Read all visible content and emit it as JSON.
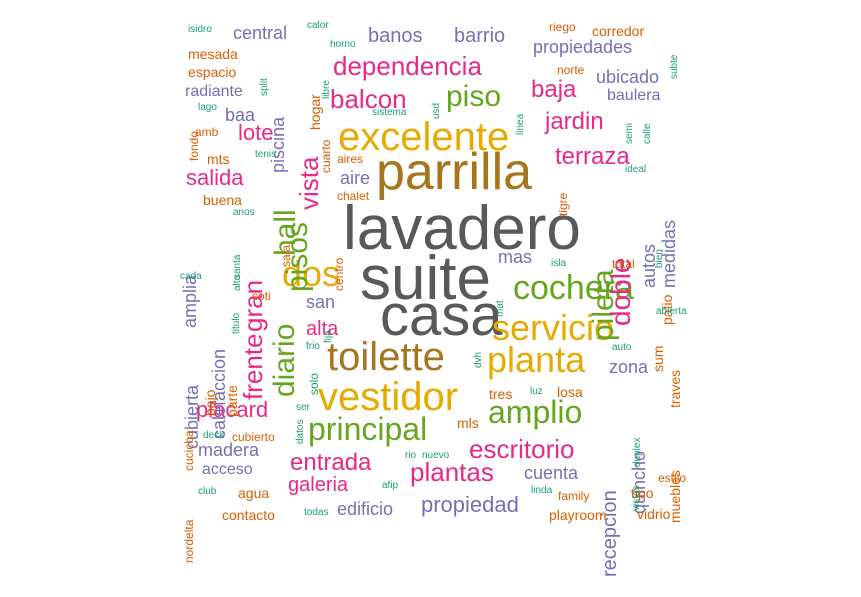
{
  "palette": {
    "gray": "#595959",
    "gold": "#a6761d",
    "yellow": "#e6ab02",
    "green": "#66a61e",
    "magenta": "#e7298a",
    "purple": "#7570b3",
    "orange": "#d95f02",
    "teal": "#1b9e77"
  },
  "words": [
    {
      "t": "lavadero",
      "c": "gray"
    },
    {
      "t": "suite",
      "c": "gray"
    },
    {
      "t": "casa",
      "c": "gray"
    },
    {
      "t": "parrilla",
      "c": "gold"
    },
    {
      "t": "excelente",
      "c": "yellow"
    },
    {
      "t": "toilette",
      "c": "gold"
    },
    {
      "t": "vestidor",
      "c": "yellow"
    },
    {
      "t": "servicio",
      "c": "yellow"
    },
    {
      "t": "planta",
      "c": "yellow"
    },
    {
      "t": "cochera",
      "c": "green"
    },
    {
      "t": "dos",
      "c": "yellow"
    },
    {
      "t": "principal",
      "c": "green"
    },
    {
      "t": "amplio",
      "c": "green"
    },
    {
      "t": "dependencia",
      "c": "magenta"
    },
    {
      "t": "balcon",
      "c": "magenta"
    },
    {
      "t": "piso",
      "c": "green"
    },
    {
      "t": "pisos",
      "c": "green"
    },
    {
      "t": "diario",
      "c": "green"
    },
    {
      "t": "frente",
      "c": "magenta"
    },
    {
      "t": "gran",
      "c": "magenta"
    },
    {
      "t": "hall",
      "c": "green"
    },
    {
      "t": "vista",
      "c": "magenta"
    },
    {
      "t": "pileta",
      "c": "green"
    },
    {
      "t": "doble",
      "c": "magenta"
    },
    {
      "t": "jardin",
      "c": "magenta"
    },
    {
      "t": "terraza",
      "c": "magenta"
    },
    {
      "t": "baja",
      "c": "magenta"
    },
    {
      "t": "escritorio",
      "c": "magenta"
    },
    {
      "t": "plantas",
      "c": "magenta"
    },
    {
      "t": "entrada",
      "c": "magenta"
    },
    {
      "t": "propiedad",
      "c": "purple"
    },
    {
      "t": "lote",
      "c": "magenta"
    },
    {
      "t": "salida",
      "c": "magenta"
    },
    {
      "t": "placard",
      "c": "magenta"
    },
    {
      "t": "galeria",
      "c": "magenta"
    },
    {
      "t": "alta",
      "c": "magenta"
    },
    {
      "t": "barrio",
      "c": "purple"
    },
    {
      "t": "banos",
      "c": "purple"
    },
    {
      "t": "central",
      "c": "purple"
    },
    {
      "t": "propiedades",
      "c": "purple"
    },
    {
      "t": "ubicado",
      "c": "purple"
    },
    {
      "t": "baulera",
      "c": "purple"
    },
    {
      "t": "medidas",
      "c": "purple"
    },
    {
      "t": "autos",
      "c": "purple"
    },
    {
      "t": "aire",
      "c": "purple"
    },
    {
      "t": "mas",
      "c": "purple"
    },
    {
      "t": "san",
      "c": "purple"
    },
    {
      "t": "zona",
      "c": "purple"
    },
    {
      "t": "cuenta",
      "c": "purple"
    },
    {
      "t": "edificio",
      "c": "purple"
    },
    {
      "t": "madera",
      "c": "purple"
    },
    {
      "t": "acceso",
      "c": "purple"
    },
    {
      "t": "calefaccion",
      "c": "purple"
    },
    {
      "t": "amplia",
      "c": "purple"
    },
    {
      "t": "cubierta",
      "c": "purple"
    },
    {
      "t": "recepcion",
      "c": "purple"
    },
    {
      "t": "quincho",
      "c": "purple"
    },
    {
      "t": "radiante",
      "c": "purple"
    },
    {
      "t": "baa",
      "c": "purple"
    },
    {
      "t": "piscina",
      "c": "purple"
    },
    {
      "t": "mesada",
      "c": "orange"
    },
    {
      "t": "espacio",
      "c": "orange"
    },
    {
      "t": "corredor",
      "c": "orange"
    },
    {
      "t": "hogar",
      "c": "orange"
    },
    {
      "t": "mts",
      "c": "orange"
    },
    {
      "t": "buena",
      "c": "orange"
    },
    {
      "t": "coti",
      "c": "orange"
    },
    {
      "t": "parte",
      "c": "orange"
    },
    {
      "t": "bajo",
      "c": "orange"
    },
    {
      "t": "agua",
      "c": "orange"
    },
    {
      "t": "contacto",
      "c": "orange"
    },
    {
      "t": "tres",
      "c": "orange"
    },
    {
      "t": "mls",
      "c": "orange"
    },
    {
      "t": "losa",
      "c": "orange"
    },
    {
      "t": "muebles",
      "c": "orange"
    },
    {
      "t": "traves",
      "c": "orange"
    },
    {
      "t": "patio",
      "c": "orange"
    },
    {
      "t": "sum",
      "c": "orange"
    },
    {
      "t": "tipo",
      "c": "orange"
    },
    {
      "t": "vidrio",
      "c": "orange"
    },
    {
      "t": "estilo",
      "c": "orange"
    },
    {
      "t": "family",
      "c": "orange"
    },
    {
      "t": "playroom",
      "c": "orange"
    },
    {
      "t": "cubierto",
      "c": "orange"
    },
    {
      "t": "cuarto",
      "c": "orange"
    },
    {
      "t": "aires",
      "c": "orange"
    },
    {
      "t": "chalet",
      "c": "orange"
    },
    {
      "t": "tigre",
      "c": "orange"
    },
    {
      "t": "norte",
      "c": "orange"
    },
    {
      "t": "riego",
      "c": "orange"
    },
    {
      "t": "total",
      "c": "orange"
    },
    {
      "t": "sala",
      "c": "orange"
    },
    {
      "t": "centro",
      "c": "orange"
    },
    {
      "t": "fondo",
      "c": "orange"
    },
    {
      "t": "amb",
      "c": "orange"
    },
    {
      "t": "cucicba",
      "c": "orange"
    },
    {
      "t": "nordelta",
      "c": "orange"
    },
    {
      "t": "isidro",
      "c": "teal"
    },
    {
      "t": "calor",
      "c": "teal"
    },
    {
      "t": "horno",
      "c": "teal"
    },
    {
      "t": "split",
      "c": "teal"
    },
    {
      "t": "libre",
      "c": "teal"
    },
    {
      "t": "lago",
      "c": "teal"
    },
    {
      "t": "tenis",
      "c": "teal"
    },
    {
      "t": "anos",
      "c": "teal"
    },
    {
      "t": "alto",
      "c": "teal"
    },
    {
      "t": "santa",
      "c": "teal"
    },
    {
      "t": "cada",
      "c": "teal"
    },
    {
      "t": "titulo",
      "c": "teal"
    },
    {
      "t": "fija",
      "c": "teal"
    },
    {
      "t": "frio",
      "c": "teal"
    },
    {
      "t": "solo",
      "c": "teal"
    },
    {
      "t": "ser",
      "c": "teal"
    },
    {
      "t": "datos",
      "c": "teal"
    },
    {
      "t": "deck",
      "c": "teal"
    },
    {
      "t": "club",
      "c": "teal"
    },
    {
      "t": "todas",
      "c": "teal"
    },
    {
      "t": "afip",
      "c": "teal"
    },
    {
      "t": "rio",
      "c": "teal"
    },
    {
      "t": "nuevo",
      "c": "teal"
    },
    {
      "t": "linda",
      "c": "teal"
    },
    {
      "t": "luz",
      "c": "teal"
    },
    {
      "t": "isla",
      "c": "teal"
    },
    {
      "t": "mat",
      "c": "teal"
    },
    {
      "t": "dvh",
      "c": "teal"
    },
    {
      "t": "ideal",
      "c": "teal"
    },
    {
      "t": "bien",
      "c": "teal"
    },
    {
      "t": "abierta",
      "c": "teal"
    },
    {
      "t": "auto",
      "c": "teal"
    },
    {
      "t": "vistas",
      "c": "teal"
    },
    {
      "t": "duplex",
      "c": "teal"
    },
    {
      "t": "semi",
      "c": "teal"
    },
    {
      "t": "calle",
      "c": "teal"
    },
    {
      "t": "subte",
      "c": "teal"
    },
    {
      "t": "sistema",
      "c": "teal"
    },
    {
      "t": "linea",
      "c": "teal"
    },
    {
      "t": "usd",
      "c": "teal"
    }
  ]
}
